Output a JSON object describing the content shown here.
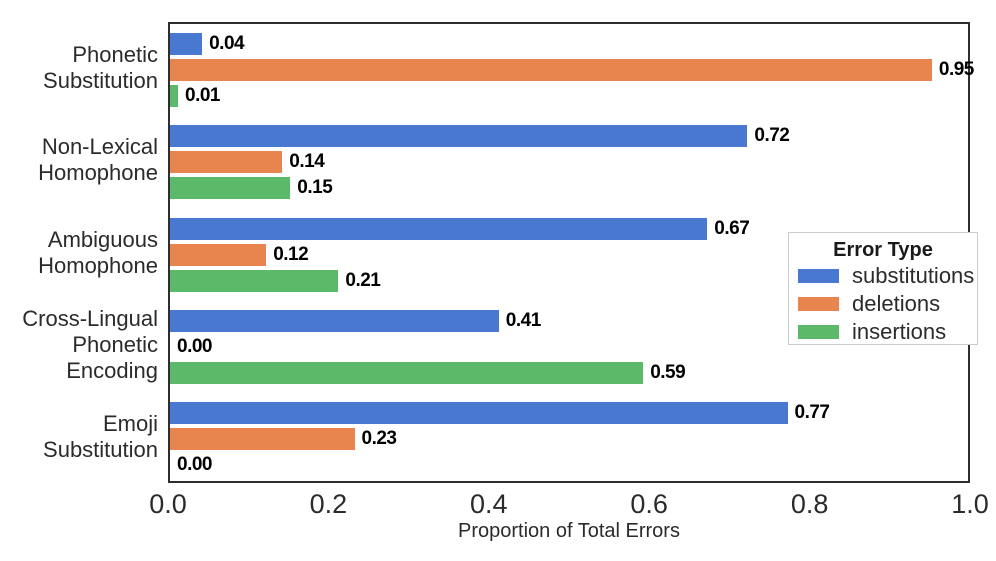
{
  "chart_data": {
    "type": "bar",
    "orientation": "horizontal",
    "title": "",
    "xlabel": "Proportion of Total Errors",
    "ylabel": "",
    "xlim": [
      0,
      1.0
    ],
    "x_ticks": [
      "0.0",
      "0.2",
      "0.4",
      "0.6",
      "0.8",
      "1.0"
    ],
    "x_tick_values": [
      0,
      0.2,
      0.4,
      0.6,
      0.8,
      1.0
    ],
    "grid": false,
    "legend_title": "Error Type",
    "legend_position": "inside-right-center",
    "categories": [
      "Phonetic\nSubstitution",
      "Non-Lexical\nHomophone",
      "Ambiguous\nHomophone",
      "Cross-Lingual\nPhonetic\nEncoding",
      "Emoji\nSubstitution"
    ],
    "series": [
      {
        "name": "substitutions",
        "color": "#4878cf",
        "values": [
          0.04,
          0.72,
          0.67,
          0.41,
          0.77
        ]
      },
      {
        "name": "deletions",
        "color": "#e8854e",
        "values": [
          0.95,
          0.14,
          0.12,
          0.0,
          0.23
        ]
      },
      {
        "name": "insertions",
        "color": "#5cb96a",
        "values": [
          0.01,
          0.15,
          0.21,
          0.59,
          0.0
        ]
      }
    ],
    "value_label_decimals": 2
  },
  "style": {
    "background": "#ffffff",
    "spine_color": "#2e2e2e",
    "text_color": "#2b2b2b",
    "value_label_color": "#000000",
    "legend_border_color": "#cccccc"
  }
}
